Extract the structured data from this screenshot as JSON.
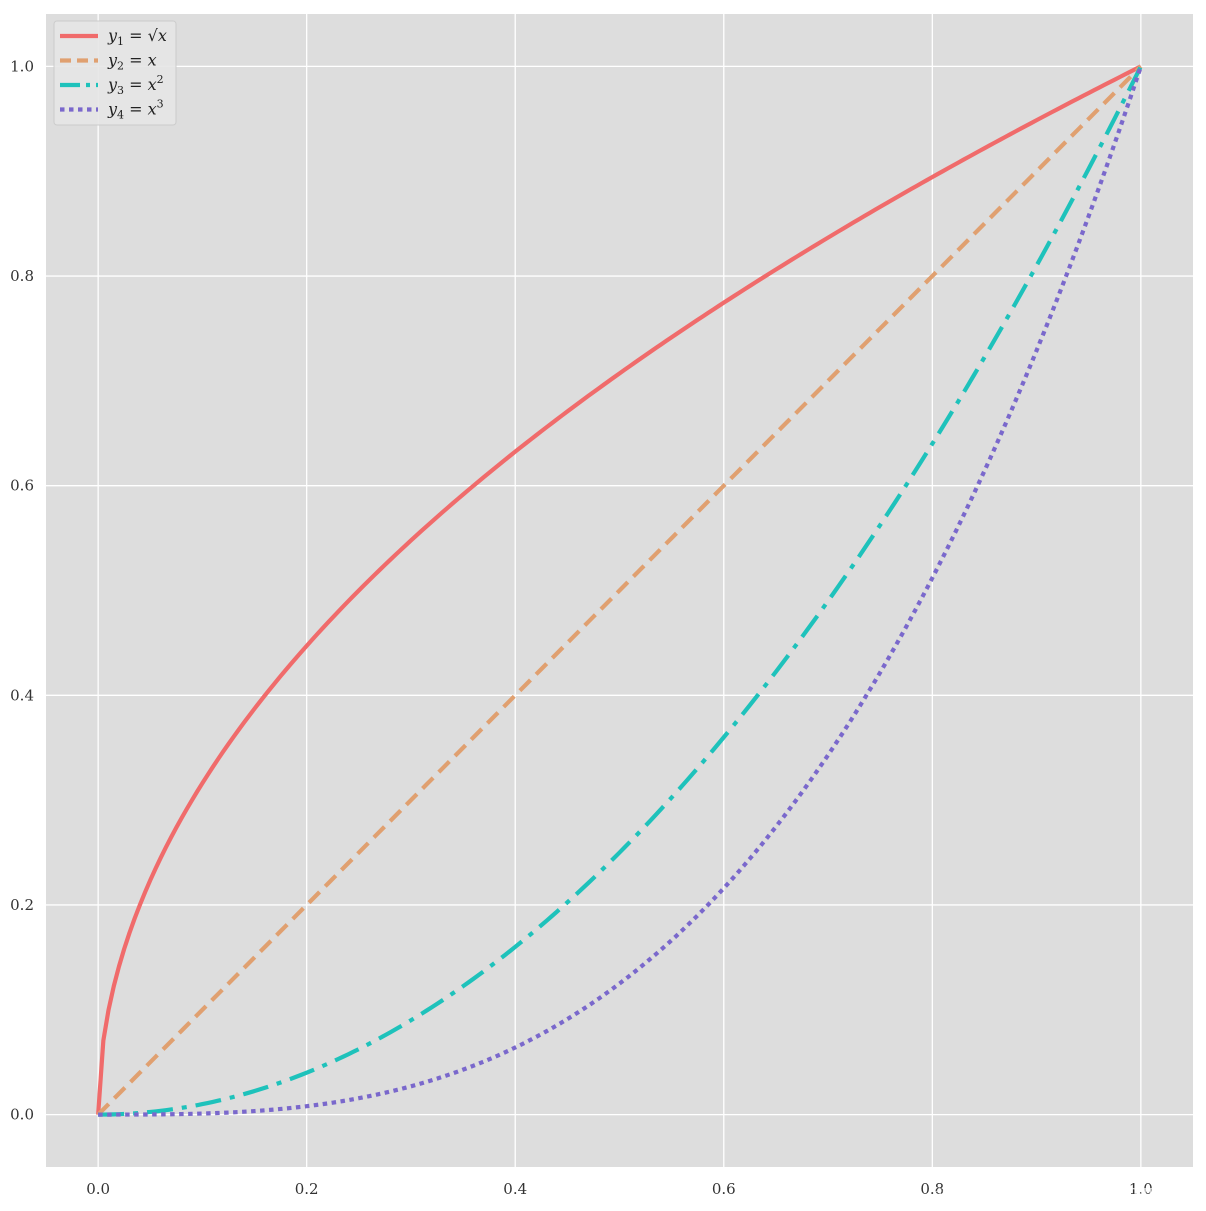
{
  "chart_data": {
    "type": "line",
    "xlim": [
      -0.05,
      1.05
    ],
    "ylim": [
      -0.05,
      1.05
    ],
    "x_ticks": [
      0.0,
      0.2,
      0.4,
      0.6,
      0.8,
      1.0
    ],
    "y_ticks": [
      0.0,
      0.2,
      0.4,
      0.6,
      0.8,
      1.0
    ],
    "x_tick_labels": [
      "0.0",
      "0.2",
      "0.4",
      "0.6",
      "0.8",
      "1.0"
    ],
    "y_tick_labels": [
      "0.0",
      "0.2",
      "0.4",
      "0.6",
      "0.8",
      "1.0"
    ],
    "grid": true,
    "background_color": "#dddddd",
    "grid_color": "#ffffff",
    "legend_position": "upper-left",
    "x": [
      0.0,
      0.01,
      0.02,
      0.03,
      0.04,
      0.05,
      0.06,
      0.07,
      0.08,
      0.09,
      0.1,
      0.12,
      0.14,
      0.16,
      0.18,
      0.2,
      0.25,
      0.3,
      0.35,
      0.4,
      0.45,
      0.5,
      0.55,
      0.6,
      0.65,
      0.7,
      0.75,
      0.8,
      0.85,
      0.9,
      0.95,
      1.0
    ],
    "series": [
      {
        "name": "y₁ = √x",
        "func": "sqrt",
        "values": [
          0.0,
          0.1,
          0.141,
          0.173,
          0.2,
          0.224,
          0.245,
          0.265,
          0.283,
          0.3,
          0.316,
          0.346,
          0.374,
          0.4,
          0.424,
          0.447,
          0.5,
          0.548,
          0.592,
          0.632,
          0.671,
          0.707,
          0.742,
          0.775,
          0.806,
          0.837,
          0.866,
          0.894,
          0.922,
          0.949,
          0.975,
          1.0
        ],
        "color": "#f06b6b",
        "linestyle": "solid"
      },
      {
        "name": "y₂ = x",
        "func": "linear",
        "values": [
          0.0,
          0.01,
          0.02,
          0.03,
          0.04,
          0.05,
          0.06,
          0.07,
          0.08,
          0.09,
          0.1,
          0.12,
          0.14,
          0.16,
          0.18,
          0.2,
          0.25,
          0.3,
          0.35,
          0.4,
          0.45,
          0.5,
          0.55,
          0.6,
          0.65,
          0.7,
          0.75,
          0.8,
          0.85,
          0.9,
          0.95,
          1.0
        ],
        "color": "#e0a070",
        "linestyle": "dashed"
      },
      {
        "name": "y₃ = x²",
        "func": "square",
        "values": [
          0.0,
          0.0001,
          0.0004,
          0.0009,
          0.0016,
          0.0025,
          0.0036,
          0.0049,
          0.0064,
          0.0081,
          0.01,
          0.0144,
          0.0196,
          0.0256,
          0.0324,
          0.04,
          0.0625,
          0.09,
          0.1225,
          0.16,
          0.2025,
          0.25,
          0.3025,
          0.36,
          0.4225,
          0.49,
          0.5625,
          0.64,
          0.7225,
          0.81,
          0.9025,
          1.0
        ],
        "color": "#1ec2bb",
        "linestyle": "dashdot"
      },
      {
        "name": "y₄ = x³",
        "func": "cube",
        "values": [
          0.0,
          1e-06,
          8e-06,
          2.7e-05,
          6.4e-05,
          0.000125,
          0.000216,
          0.000343,
          0.000512,
          0.000729,
          0.001,
          0.001728,
          0.002744,
          0.004096,
          0.005832,
          0.008,
          0.015625,
          0.027,
          0.042875,
          0.064,
          0.091125,
          0.125,
          0.166375,
          0.216,
          0.274625,
          0.343,
          0.421875,
          0.512,
          0.614125,
          0.729,
          0.857375,
          1.0
        ],
        "color": "#7a68cc",
        "linestyle": "dotted"
      }
    ],
    "legend": [
      {
        "var": "y",
        "sub": "1",
        "eq": " = ",
        "rhs": "√x",
        "sup": ""
      },
      {
        "var": "y",
        "sub": "2",
        "eq": " = ",
        "rhs": "x",
        "sup": ""
      },
      {
        "var": "y",
        "sub": "3",
        "eq": " = ",
        "rhs": "x",
        "sup": "2"
      },
      {
        "var": "y",
        "sub": "4",
        "eq": " = ",
        "rhs": "x",
        "sup": "3"
      }
    ],
    "watermark": "https://blog.csdn.net/qq_42452508"
  }
}
